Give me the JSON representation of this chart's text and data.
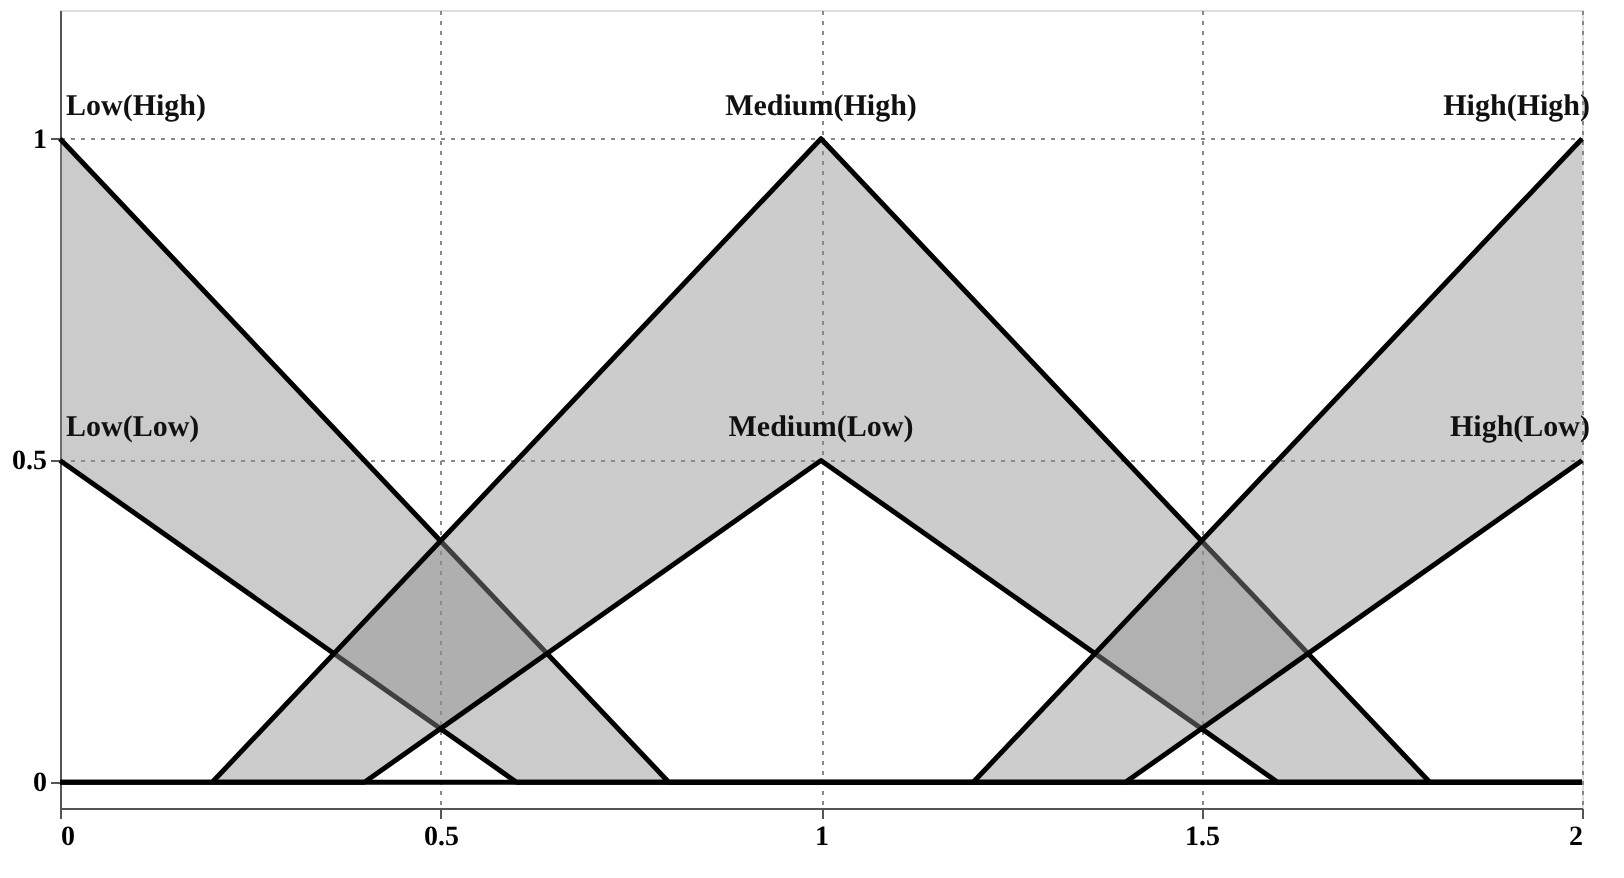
{
  "chart_data": {
    "type": "line",
    "series": [
      {
        "name": "Low(High)",
        "color": "#000000",
        "x": [
          0,
          0.6,
          0.8,
          2
        ],
        "values": [
          1,
          0.25,
          0,
          0
        ],
        "lower": [
          0.5,
          0,
          0,
          0
        ],
        "upper": [
          1,
          0.25,
          0,
          0
        ]
      },
      {
        "name": "Low(Low)",
        "color": "#000000",
        "x": [
          0,
          0.6,
          2
        ],
        "values": [
          0.5,
          0,
          0
        ]
      },
      {
        "name": "Medium(High)",
        "color": "#000000",
        "x": [
          0.2,
          0.4,
          1,
          1.6,
          1.8
        ],
        "values": [
          0,
          0.25,
          1,
          0.25,
          0
        ],
        "lower": [
          0,
          0,
          0.5,
          0,
          0
        ],
        "upper": [
          0,
          0.25,
          1,
          0.25,
          0
        ]
      },
      {
        "name": "Medium(Low)",
        "color": "#000000",
        "x": [
          0,
          0.4,
          1,
          1.6,
          2
        ],
        "values": [
          0,
          0,
          0.5,
          0,
          0
        ]
      },
      {
        "name": "High(High)",
        "color": "#000000",
        "x": [
          1.2,
          1.4,
          2
        ],
        "values": [
          0,
          0.25,
          1
        ],
        "lower": [
          0,
          0,
          0.5
        ],
        "upper": [
          0,
          0.25,
          1
        ]
      },
      {
        "name": "High(Low)",
        "color": "#000000",
        "x": [
          0,
          1.4,
          2
        ],
        "values": [
          0,
          0,
          0.5
        ]
      }
    ],
    "xlim": [
      0,
      2
    ],
    "xticks": [
      0,
      0.5,
      1,
      1.5,
      2
    ],
    "ylim": [
      -0.04,
      1.2
    ],
    "yticks": [
      0,
      0.5,
      1
    ],
    "grid": true,
    "legend": false,
    "marker": "none",
    "line_style": "solid"
  }
}
